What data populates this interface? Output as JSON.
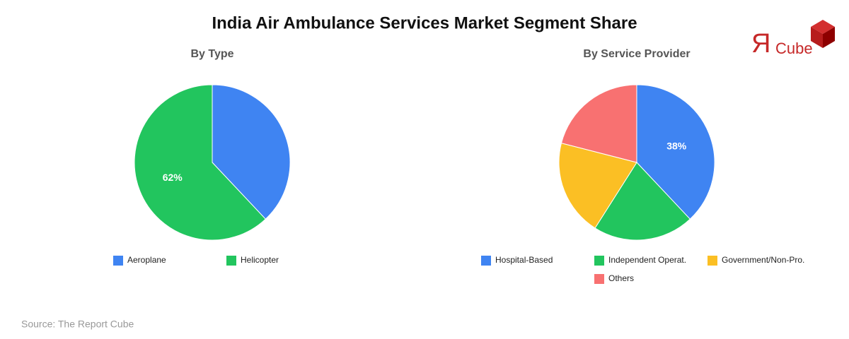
{
  "title": "India Air Ambulance Services Market Segment Share",
  "source": "Source: The Report Cube",
  "logo": {
    "mark": "Я",
    "text": "Cube"
  },
  "chart_data": [
    {
      "type": "pie",
      "title": "By Type",
      "categories": [
        "Aeroplane",
        "Helicopter"
      ],
      "values": [
        38,
        62
      ],
      "value_labels": [
        null,
        "62%"
      ],
      "colors": [
        "#3f84f2",
        "#22c55e"
      ]
    },
    {
      "type": "pie",
      "title": "By Service Provider",
      "categories": [
        "Hospital-Based",
        "Independent Operat.",
        "Government/Non-Pro.",
        "Others"
      ],
      "values": [
        38,
        21,
        20,
        21
      ],
      "value_labels": [
        "38%",
        null,
        null,
        null
      ],
      "colors": [
        "#3f84f2",
        "#22c55e",
        "#fbbf24",
        "#f87171"
      ]
    }
  ]
}
